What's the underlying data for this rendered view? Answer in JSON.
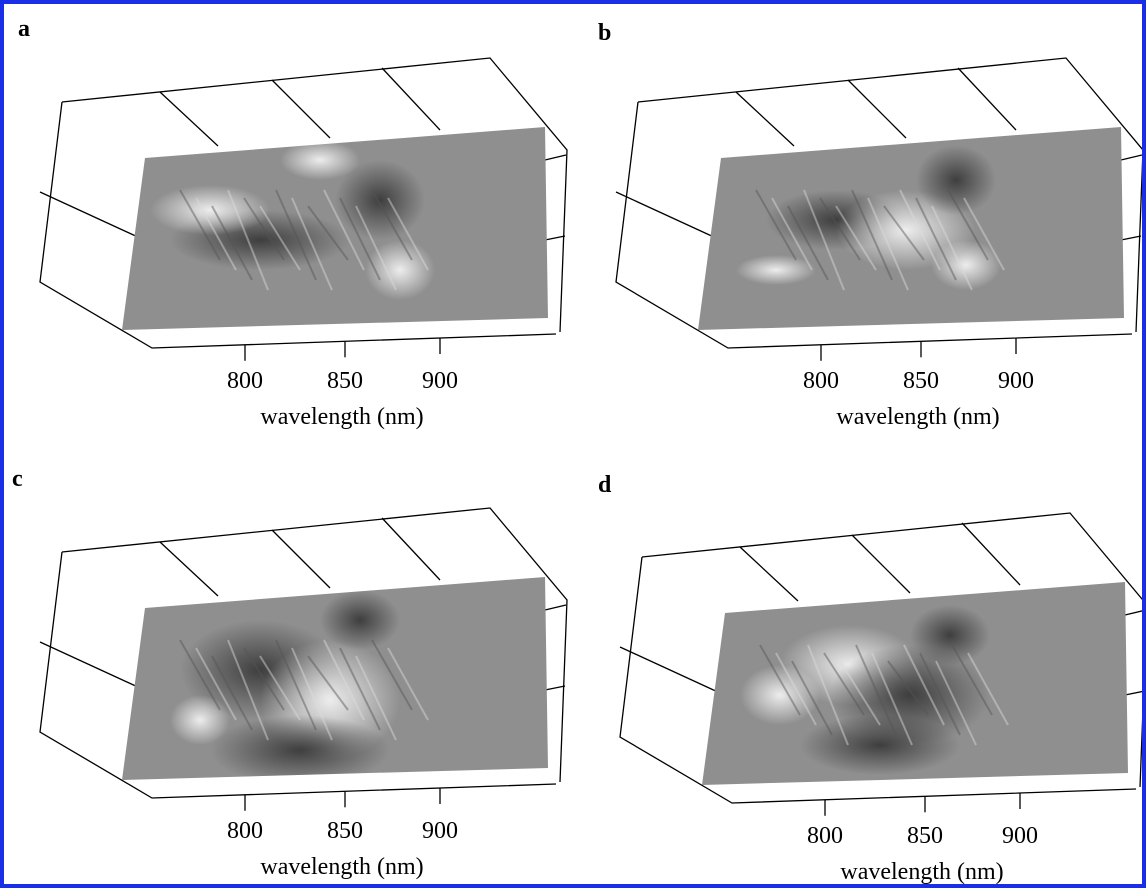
{
  "panels": [
    {
      "label": "a",
      "xticks": [
        800,
        850,
        900
      ],
      "xlabel": "wavelength (nm)"
    },
    {
      "label": "b",
      "xticks": [
        800,
        850,
        900
      ],
      "xlabel": "wavelength (nm)"
    },
    {
      "label": "c",
      "xticks": [
        800,
        850,
        900
      ],
      "xlabel": "wavelength (nm)"
    },
    {
      "label": "d",
      "xticks": [
        800,
        850,
        900
      ],
      "xlabel": "wavelength (nm)"
    }
  ]
}
